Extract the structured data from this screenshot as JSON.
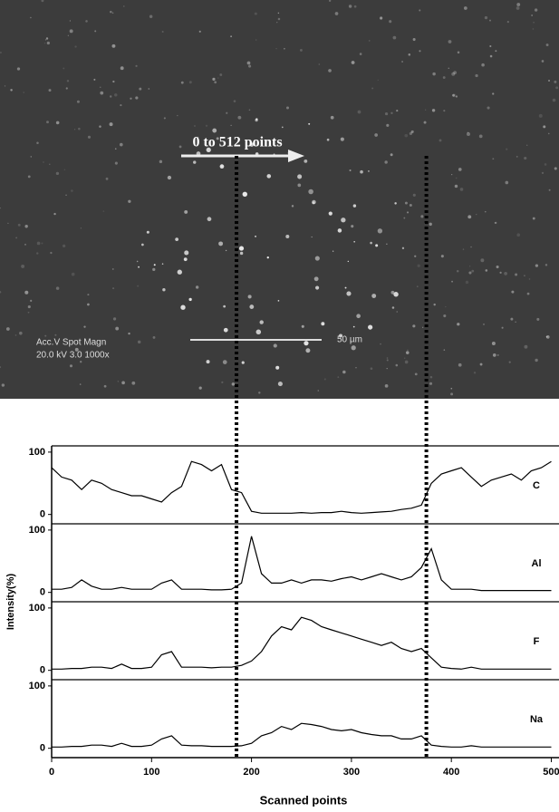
{
  "image": {
    "arrow_label": "0 to 512 points",
    "info_header": "Acc.V  Spot Magn",
    "info_values": "20.0 kV 3.0   1000x",
    "scale_label": "50 µm"
  },
  "chart_data": {
    "type": "line",
    "xlabel": "Scanned points",
    "ylabel": "Intensity(%)",
    "xlim": [
      0,
      505
    ],
    "xticks": [
      0,
      100,
      200,
      300,
      400,
      500
    ],
    "ylim": [
      -15,
      110
    ],
    "yticks": [
      0,
      100
    ],
    "vlines": [
      185,
      375
    ],
    "x": [
      0,
      10,
      20,
      30,
      40,
      50,
      60,
      70,
      80,
      90,
      100,
      110,
      120,
      130,
      140,
      150,
      160,
      170,
      180,
      190,
      200,
      210,
      220,
      230,
      240,
      250,
      260,
      270,
      280,
      290,
      300,
      310,
      320,
      330,
      340,
      350,
      360,
      370,
      380,
      390,
      400,
      410,
      420,
      430,
      440,
      450,
      460,
      470,
      480,
      490,
      500
    ],
    "series": [
      {
        "name": "C",
        "color": "#000000",
        "values": [
          75,
          60,
          55,
          40,
          55,
          50,
          40,
          35,
          30,
          30,
          25,
          20,
          35,
          45,
          85,
          80,
          70,
          80,
          40,
          35,
          5,
          2,
          2,
          2,
          2,
          3,
          2,
          3,
          3,
          5,
          3,
          2,
          3,
          4,
          5,
          8,
          10,
          15,
          50,
          65,
          70,
          75,
          60,
          45,
          55,
          60,
          65,
          55,
          70,
          75,
          85
        ]
      },
      {
        "name": "Al",
        "color": "#000000",
        "values": [
          5,
          5,
          8,
          20,
          10,
          5,
          5,
          8,
          5,
          5,
          5,
          15,
          20,
          5,
          5,
          5,
          4,
          4,
          5,
          15,
          90,
          30,
          15,
          15,
          20,
          15,
          20,
          20,
          18,
          22,
          25,
          20,
          25,
          30,
          25,
          20,
          25,
          40,
          70,
          20,
          5,
          5,
          5,
          3,
          3,
          3,
          3,
          3,
          3,
          3,
          3
        ]
      },
      {
        "name": "F",
        "color": "#000000",
        "values": [
          2,
          2,
          3,
          3,
          5,
          5,
          3,
          10,
          3,
          3,
          5,
          25,
          30,
          5,
          5,
          5,
          4,
          5,
          5,
          8,
          15,
          30,
          55,
          70,
          65,
          85,
          80,
          70,
          65,
          60,
          55,
          50,
          45,
          40,
          45,
          35,
          30,
          35,
          20,
          5,
          3,
          2,
          5,
          2,
          2,
          2,
          2,
          2,
          2,
          2,
          2
        ]
      },
      {
        "name": "Na",
        "color": "#000000",
        "values": [
          2,
          2,
          3,
          3,
          5,
          5,
          3,
          8,
          3,
          3,
          5,
          15,
          20,
          5,
          4,
          4,
          3,
          3,
          3,
          4,
          8,
          20,
          25,
          35,
          30,
          40,
          38,
          35,
          30,
          28,
          30,
          25,
          22,
          20,
          20,
          15,
          15,
          20,
          5,
          3,
          2,
          2,
          4,
          2,
          2,
          2,
          2,
          2,
          2,
          2,
          2
        ]
      }
    ]
  }
}
